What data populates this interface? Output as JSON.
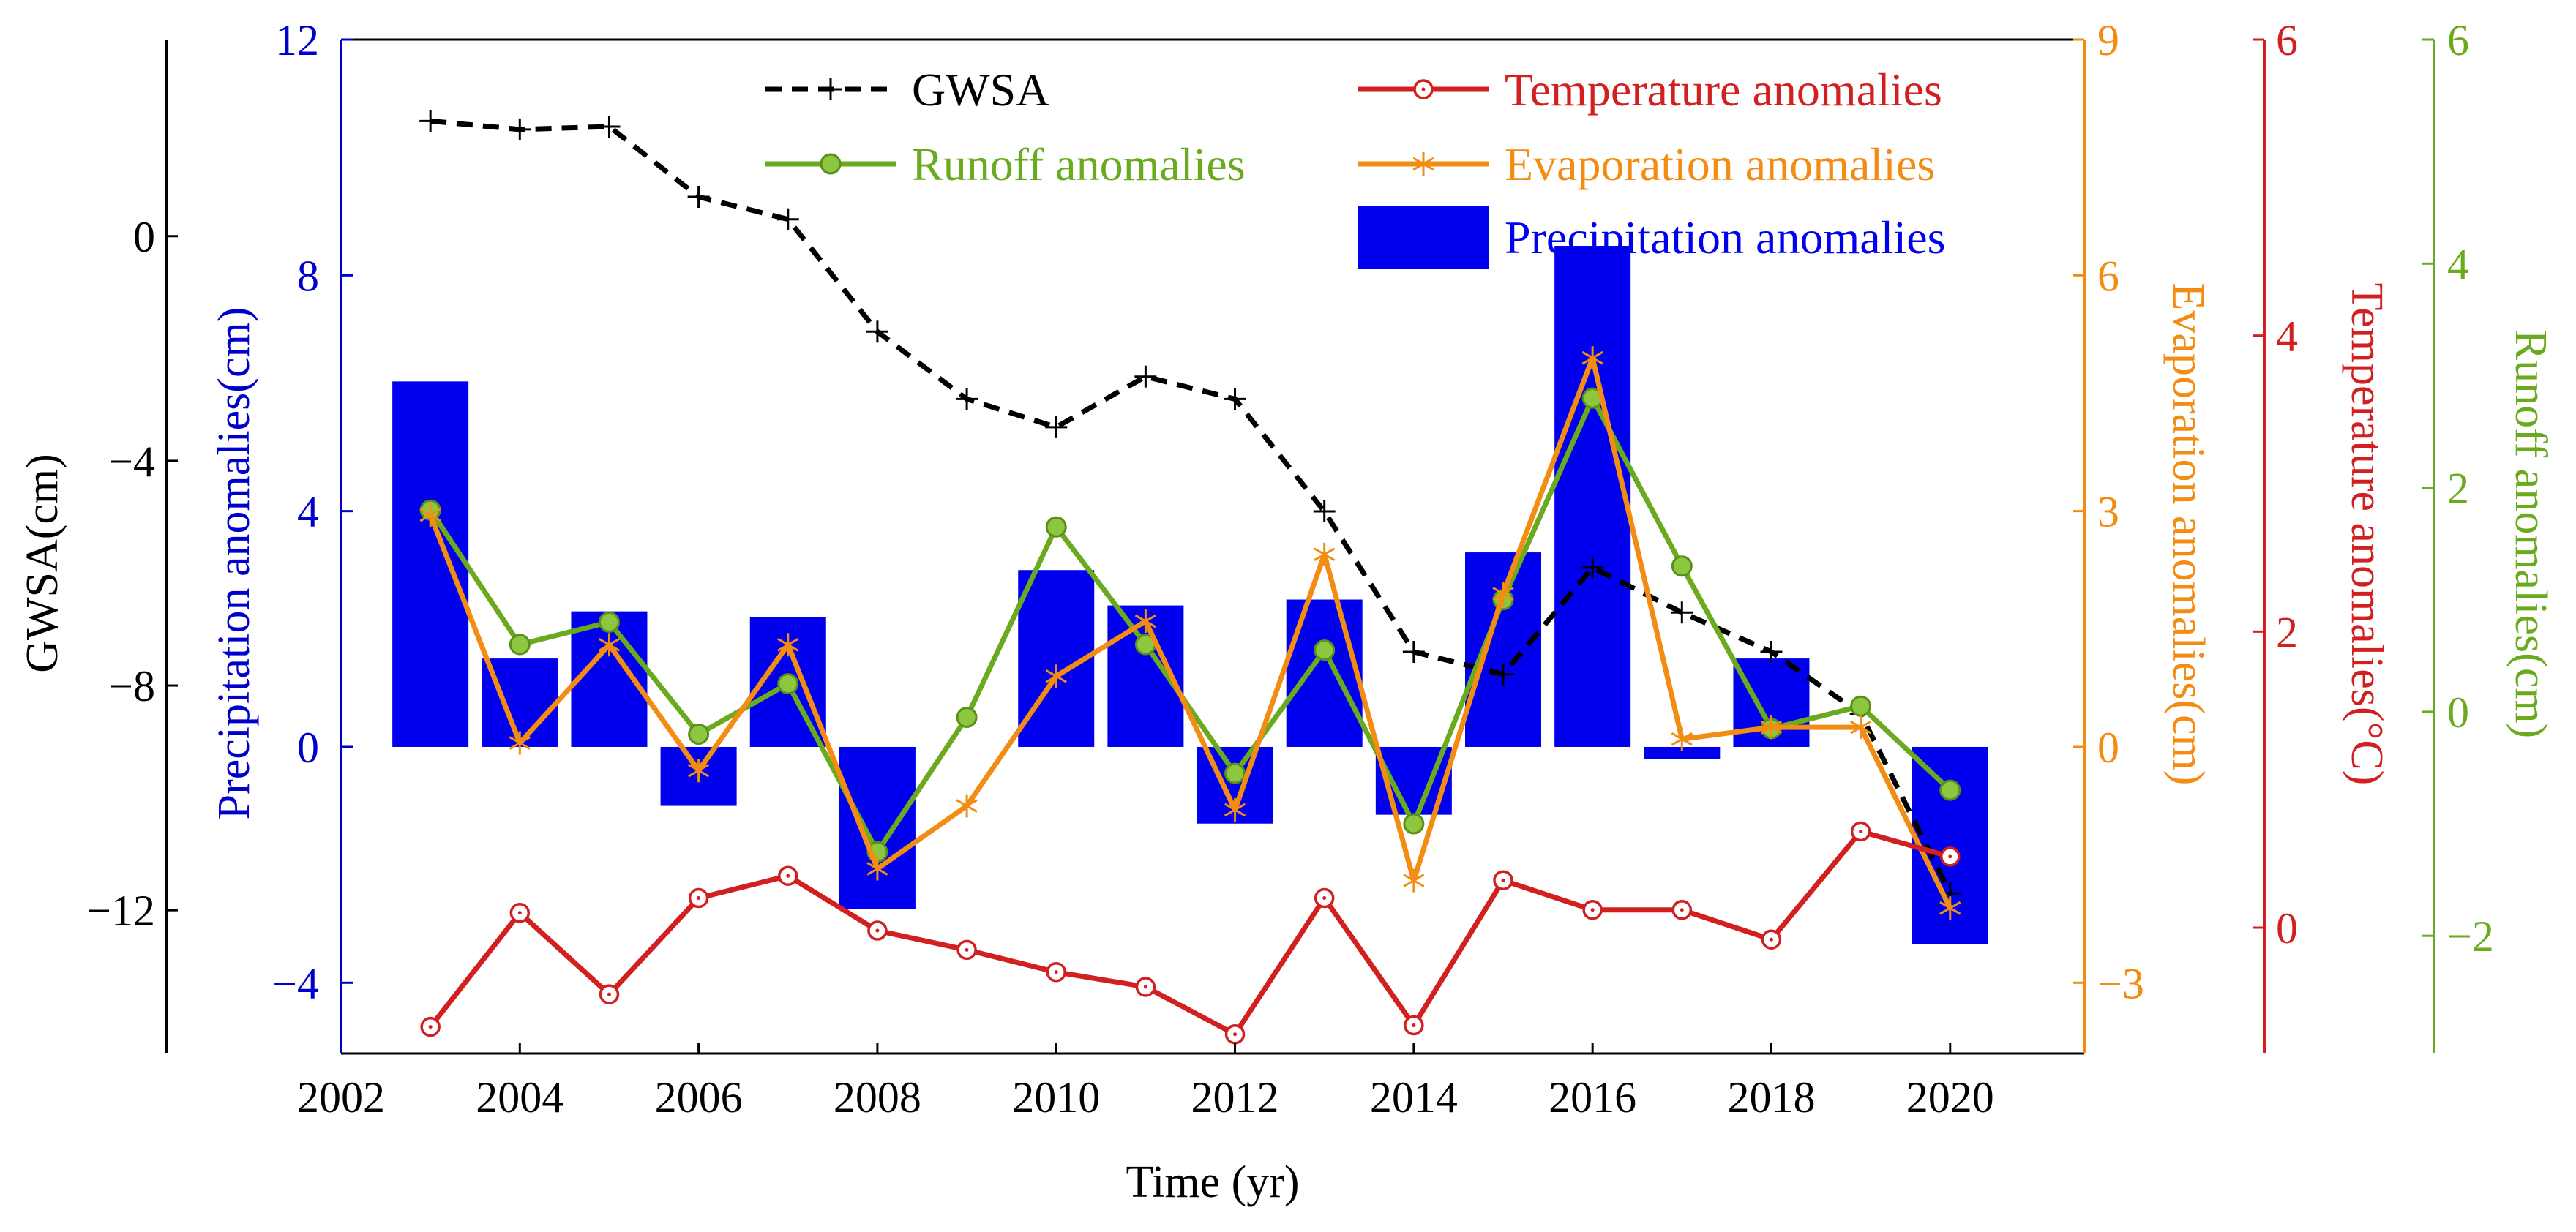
{
  "chart_data": {
    "type": "combo-bar-line",
    "xlabel": "Time (yr)",
    "x_ticks": [
      "2002",
      "2004",
      "2006",
      "2008",
      "2010",
      "2012",
      "2014",
      "2016",
      "2018",
      "2020"
    ],
    "x": [
      2003,
      2004,
      2005,
      2006,
      2007,
      2008,
      2009,
      2010,
      2011,
      2012,
      2013,
      2014,
      2015,
      2016,
      2017,
      2018,
      2019,
      2020
    ],
    "axes": {
      "gwsa": {
        "label": "GWSA(cm)",
        "ticks": [
          "0",
          "−4",
          "−8",
          "−12"
        ],
        "tick_values": [
          0,
          -4,
          -8,
          -12
        ],
        "range": [
          -14.55,
          3.5
        ],
        "color": "#000000"
      },
      "precip": {
        "label": "Precipitation anomalies(cm)",
        "ticks": [
          "12",
          "8",
          "4",
          "0",
          "−4"
        ],
        "tick_values": [
          12,
          8,
          4,
          0,
          -4
        ],
        "range": [
          -5.2,
          12
        ],
        "color": "#0000cc"
      },
      "evap": {
        "label": "Evaporation anomalies(cm)",
        "ticks": [
          "9",
          "6",
          "3",
          "0",
          "−3"
        ],
        "tick_values": [
          9,
          6,
          3,
          0,
          -3
        ],
        "range": [
          -3.9,
          9
        ],
        "color": "#f28c12"
      },
      "temp": {
        "label": "Temperature anomalies(°C)",
        "ticks": [
          "6",
          "4",
          "2",
          "0"
        ],
        "tick_values": [
          6,
          4,
          2,
          0
        ],
        "range": [
          -0.85,
          6
        ],
        "color": "#d21f1f"
      },
      "runoff": {
        "label": "Runoff anomalies(cm)",
        "ticks": [
          "6",
          "4",
          "2",
          "0",
          "−2"
        ],
        "tick_values": [
          6,
          4,
          2,
          0,
          -2
        ],
        "range": [
          -3.05,
          6
        ],
        "color": "#6aaa1e"
      }
    },
    "series": [
      {
        "name": "Precipitation anomalies",
        "type": "bar",
        "axis": "precip",
        "color": "#0000ee",
        "values": [
          6.2,
          1.5,
          2.3,
          -1,
          2.2,
          -2.75,
          0,
          3,
          2.4,
          -1.3,
          2.5,
          -1.15,
          3.3,
          8.5,
          -0.2,
          1.5,
          0,
          -3.35
        ]
      },
      {
        "name": "GWSA",
        "type": "line",
        "axis": "gwsa",
        "color": "#000000",
        "dash": true,
        "marker": "plus",
        "values": [
          2.05,
          1.9,
          1.95,
          0.7,
          0.3,
          -1.7,
          -2.9,
          -3.4,
          -2.5,
          -2.9,
          -4.9,
          -7.4,
          -7.8,
          -5.9,
          -6.7,
          -7.4,
          -8.5,
          -11.7
        ]
      },
      {
        "name": "Runoff anomalies",
        "type": "line",
        "axis": "runoff",
        "color": "#6aaa1e",
        "marker": "dot",
        "values": [
          1.8,
          0.6,
          0.8,
          -0.2,
          0.25,
          -1.25,
          -0.05,
          1.65,
          0.6,
          -0.55,
          0.55,
          -1.0,
          1.0,
          2.8,
          1.3,
          -0.15,
          0.05,
          -0.7
        ]
      },
      {
        "name": "Evaporation anomalies",
        "type": "line",
        "axis": "evap",
        "color": "#f28c12",
        "marker": "asterisk",
        "values": [
          2.95,
          0.05,
          1.3,
          -0.3,
          1.3,
          -1.55,
          -0.75,
          0.9,
          1.6,
          -0.8,
          2.45,
          -1.7,
          1.95,
          4.95,
          0.1,
          0.25,
          0.25,
          -2.05
        ]
      },
      {
        "name": "Temperature anomalies",
        "type": "line",
        "axis": "temp",
        "color": "#d21f1f",
        "marker": "circle",
        "values": [
          -0.67,
          0.1,
          -0.45,
          0.2,
          0.35,
          -0.02,
          -0.15,
          -0.3,
          -0.4,
          -0.72,
          0.2,
          -0.66,
          0.32,
          0.12,
          0.12,
          -0.08,
          0.65,
          0.48
        ]
      }
    ],
    "legend": {
      "position": "top-center",
      "entries": [
        {
          "label": "GWSA",
          "series": "GWSA"
        },
        {
          "label": "Temperature anomalies",
          "series": "Temperature anomalies"
        },
        {
          "label": "Runoff anomalies",
          "series": "Runoff anomalies"
        },
        {
          "label": "Evaporation anomalies",
          "series": "Evaporation anomalies"
        },
        {
          "label": "Precipitation anomalies",
          "series": "Precipitation anomalies"
        }
      ]
    }
  }
}
